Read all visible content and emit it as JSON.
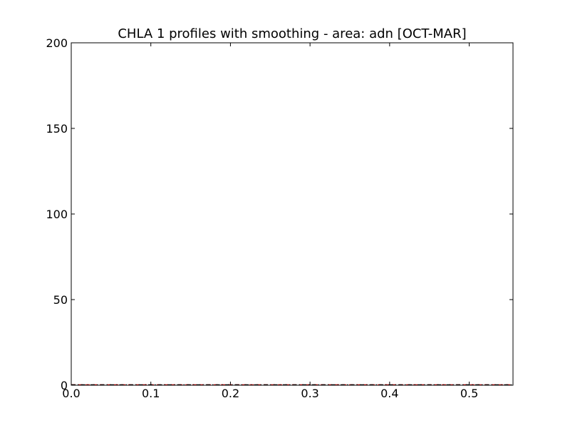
{
  "chart_data": {
    "type": "line",
    "title": "CHLA 1 profiles with smoothing - area: adn [OCT-MAR]",
    "xlabel": "",
    "ylabel": "",
    "xlim": [
      0.0,
      0.555
    ],
    "ylim": [
      0,
      200
    ],
    "x_ticks": [
      0.0,
      0.1,
      0.2,
      0.3,
      0.4,
      0.5
    ],
    "x_tick_labels": [
      "0.0",
      "0.1",
      "0.2",
      "0.3",
      "0.4",
      "0.5"
    ],
    "y_ticks": [
      0,
      50,
      100,
      150,
      200
    ],
    "y_tick_labels": [
      "0",
      "50",
      "100",
      "150",
      "200"
    ],
    "grid": false,
    "legend": "none",
    "series": [
      {
        "x": [
          0.0,
          0.555
        ],
        "y": [
          0,
          0
        ],
        "color": "#ff0000",
        "style": "dashed"
      },
      {
        "x": [
          0.0,
          0.555
        ],
        "y": [
          0,
          0
        ],
        "color": "#000000",
        "style": "dash-dot"
      }
    ]
  }
}
